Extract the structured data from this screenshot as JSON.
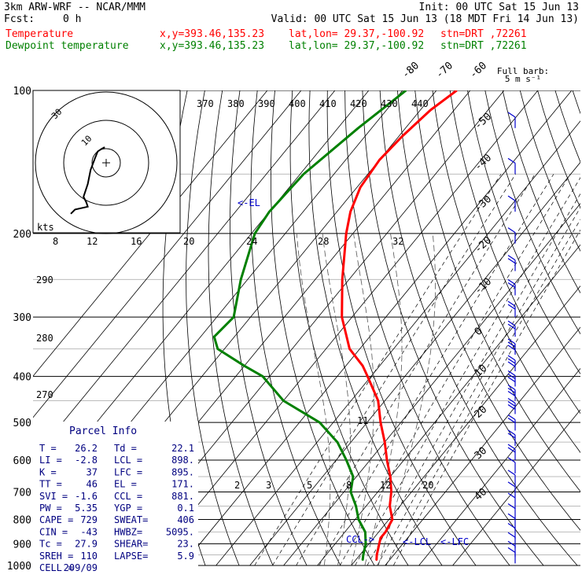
{
  "header": {
    "model": "3km ARW-WRF -- NCAR/MMM",
    "init": "Init: 00 UTC Sat 15 Jun 13",
    "fcst_label": "Fcst:",
    "fcst_value": "0 h",
    "valid": "Valid: 00 UTC Sat 15 Jun 13 (18 MDT Fri 14 Jun 13)",
    "temp_line": {
      "label": "Temperature",
      "xy": "x,y=393.46,135.23",
      "latlon": "lat,lon= 29.37,-100.92",
      "stn": "stn=DRT ,72261"
    },
    "dew_line": {
      "label": "Dewpoint temperature",
      "xy": "x,y=393.46,135.23",
      "latlon": "lat,lon= 29.37,-100.92",
      "stn": "stn=DRT ,72261"
    }
  },
  "barb_key": {
    "title": "Full barb:",
    "value": "5 m s⁻¹"
  },
  "colors": {
    "temperature": "#ff0000",
    "dewpoint": "#008000",
    "barbs": "#0000cc",
    "parcel_text": "#000080"
  },
  "parcel_info": {
    "title": "Parcel Info",
    "rows": [
      [
        "T  =",
        "26.2",
        "Td =",
        "22.1"
      ],
      [
        "LI =",
        "-2.8",
        "LCL =",
        "898."
      ],
      [
        "K  =",
        "37",
        "LFC =",
        "895."
      ],
      [
        "TT =",
        "46",
        "EL =",
        "171."
      ],
      [
        "SVI =",
        "-1.6",
        "CCL =",
        "881."
      ],
      [
        "PW =",
        "5.35",
        "YGP =",
        "0.1"
      ],
      [
        "CAPE =",
        "729",
        "SWEAT=",
        "406"
      ],
      [
        "CIN =",
        "-43",
        "HWBZ=",
        "5095."
      ],
      [
        "Tc =",
        "27.9",
        "SHEAR=",
        "23."
      ],
      [
        "SREH =",
        "110",
        "LAPSE=",
        "5.9"
      ],
      [
        "CELL =",
        "209/09",
        "",
        ""
      ]
    ]
  },
  "annotations": {
    "el": "<-EL",
    "ccl": "CCL->",
    "lcl": "<-LCL",
    "lfc": "<-LFC",
    "hodo_unit": "kts"
  },
  "chart_data": {
    "type": "line",
    "title": "",
    "xlabel": "",
    "ylabel": "",
    "pressure_ticks": [
      100,
      200,
      300,
      400,
      500,
      600,
      700,
      800,
      900,
      1000
    ],
    "isotherm_labels": [
      -80,
      -70,
      -60,
      -50,
      -40,
      -30,
      -20,
      -10,
      0,
      10,
      20,
      30,
      40
    ],
    "theta_e_labels": [
      370,
      380,
      390,
      400,
      410,
      420,
      430,
      440
    ],
    "theta_labels_left": [
      290,
      280,
      270
    ],
    "mixing_ratio_labels_upper": [
      8,
      12,
      16,
      20,
      24,
      28,
      32
    ],
    "mixing_ratio_labels_lower": [
      2,
      3,
      5,
      8,
      12,
      20
    ],
    "moist_adiabat_label": "11",
    "series": [
      {
        "name": "Temperature",
        "points": [
          [
            100,
            -64
          ],
          [
            110,
            -67
          ],
          [
            125,
            -69
          ],
          [
            140,
            -70
          ],
          [
            160,
            -69
          ],
          [
            180,
            -66
          ],
          [
            200,
            -62
          ],
          [
            250,
            -52
          ],
          [
            300,
            -43
          ],
          [
            350,
            -33
          ],
          [
            380,
            -25
          ],
          [
            400,
            -21
          ],
          [
            450,
            -12
          ],
          [
            500,
            -6
          ],
          [
            550,
            0
          ],
          [
            600,
            5
          ],
          [
            650,
            10
          ],
          [
            700,
            14
          ],
          [
            750,
            17
          ],
          [
            800,
            21
          ],
          [
            850,
            22
          ],
          [
            875,
            22
          ],
          [
            900,
            23
          ],
          [
            950,
            25
          ],
          [
            975,
            26.2
          ]
        ]
      },
      {
        "name": "Dewpoint temperature",
        "points": [
          [
            100,
            -79
          ],
          [
            120,
            -84
          ],
          [
            150,
            -89
          ],
          [
            180,
            -90
          ],
          [
            200,
            -89
          ],
          [
            250,
            -82
          ],
          [
            300,
            -75
          ],
          [
            330,
            -76
          ],
          [
            350,
            -72
          ],
          [
            380,
            -60
          ],
          [
            400,
            -52
          ],
          [
            450,
            -40
          ],
          [
            500,
            -24
          ],
          [
            550,
            -14
          ],
          [
            600,
            -7
          ],
          [
            650,
            -1
          ],
          [
            700,
            2
          ],
          [
            750,
            7
          ],
          [
            800,
            11
          ],
          [
            850,
            16
          ],
          [
            900,
            19
          ],
          [
            950,
            21
          ],
          [
            975,
            22.1
          ]
        ]
      }
    ],
    "hodograph": {
      "range_rings_kts": [
        10,
        30,
        50
      ],
      "ring_labels": [
        "10",
        "30"
      ],
      "points": [
        [
          11,
          -1
        ],
        [
          10,
          -3
        ],
        [
          8,
          -6
        ],
        [
          3,
          -8
        ],
        [
          -5,
          -11
        ],
        [
          -15,
          -13
        ],
        [
          -24,
          -16
        ],
        [
          -28,
          -14
        ],
        [
          -31,
          -13
        ],
        [
          -33,
          -22
        ],
        [
          -36,
          -25
        ]
      ]
    },
    "wind_barbs": {
      "pressures": [
        120,
        150,
        180,
        210,
        240,
        270,
        300,
        330,
        360,
        390,
        420,
        450,
        480,
        520,
        560,
        600,
        640,
        680,
        720,
        760,
        800,
        840,
        880,
        920,
        960,
        990
      ],
      "barb_counts": [
        1,
        1,
        1,
        1,
        2,
        2,
        2,
        2,
        3,
        3,
        3,
        3,
        3,
        2,
        2,
        2,
        1,
        1,
        1,
        1,
        1,
        1,
        1,
        1,
        1,
        1
      ]
    }
  }
}
